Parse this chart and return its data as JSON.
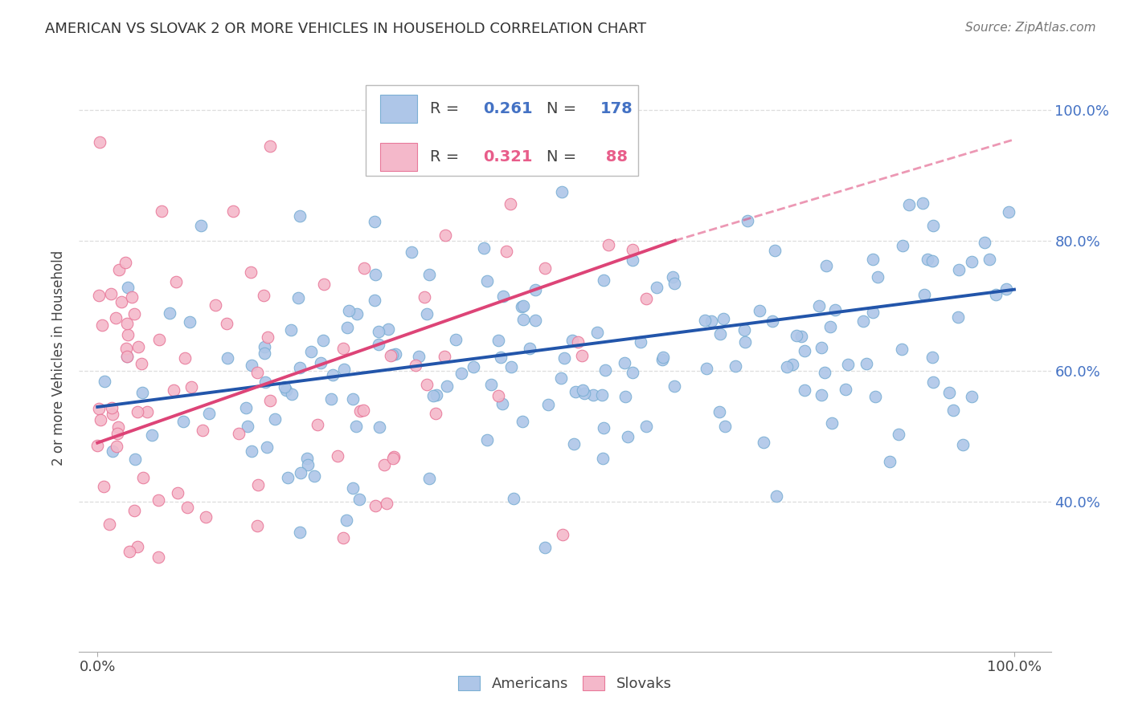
{
  "title": "AMERICAN VS SLOVAK 2 OR MORE VEHICLES IN HOUSEHOLD CORRELATION CHART",
  "source": "Source: ZipAtlas.com",
  "ylabel": "2 or more Vehicles in Household",
  "american_color": "#aec6e8",
  "american_edge_color": "#7bafd4",
  "slovak_color": "#f4b8ca",
  "slovak_edge_color": "#e8799a",
  "american_line_color": "#2255aa",
  "slovak_line_color": "#dd4477",
  "background_color": "#ffffff",
  "grid_color": "#dddddd",
  "legend_am_r": "0.261",
  "legend_am_n": "178",
  "legend_sk_r": "0.321",
  "legend_sk_n": "88",
  "am_r_color": "#4472c4",
  "sk_r_color": "#e85d8a",
  "am_trend_x0": 0.0,
  "am_trend_y0": 0.545,
  "am_trend_x1": 1.0,
  "am_trend_y1": 0.725,
  "sk_trend_x0": 0.0,
  "sk_trend_y0": 0.49,
  "sk_trend_x1": 0.63,
  "sk_trend_y1": 0.8,
  "sk_trend_dash_x0": 0.63,
  "sk_trend_dash_y0": 0.8,
  "sk_trend_dash_x1": 1.0,
  "sk_trend_dash_y1": 0.955,
  "ylim_low": 0.17,
  "ylim_high": 1.07,
  "xlim_low": -0.02,
  "xlim_high": 1.04,
  "yticks": [
    0.4,
    0.6,
    0.8,
    1.0
  ],
  "ytick_labels": [
    "40.0%",
    "60.0%",
    "80.0%",
    "100.0%"
  ],
  "xtick_labels": [
    "0.0%",
    "100.0%"
  ],
  "xtick_positions": [
    0.0,
    1.0
  ]
}
